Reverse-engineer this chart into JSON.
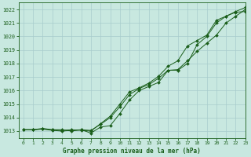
{
  "title": "Graphe pression niveau de la mer (hPa)",
  "bg_color": "#c8e8e0",
  "grid_color": "#a8cccc",
  "line_color": "#1a5e1a",
  "xlim": [
    -0.5,
    23
  ],
  "ylim": [
    1012.5,
    1022.5
  ],
  "yticks": [
    1013,
    1014,
    1015,
    1016,
    1017,
    1018,
    1019,
    1020,
    1021,
    1022
  ],
  "xticks": [
    0,
    1,
    2,
    3,
    4,
    5,
    6,
    7,
    8,
    9,
    10,
    11,
    12,
    13,
    14,
    15,
    16,
    17,
    18,
    19,
    20,
    21,
    22,
    23
  ],
  "series": [
    [
      1013.1,
      1013.1,
      1013.2,
      1013.1,
      1013.1,
      1013.0,
      1013.1,
      1012.85,
      1013.3,
      1013.4,
      1014.3,
      1015.3,
      1016.0,
      1016.3,
      1016.6,
      1017.5,
      1017.5,
      1018.0,
      1019.4,
      1020.0,
      1021.0,
      1021.5,
      1021.8,
      1021.85
    ],
    [
      1013.1,
      1013.1,
      1013.15,
      1013.05,
      1013.0,
      1013.05,
      1013.1,
      1013.05,
      1013.5,
      1014.0,
      1014.8,
      1015.7,
      1016.15,
      1016.45,
      1016.9,
      1017.5,
      1017.55,
      1018.2,
      1018.9,
      1019.5,
      1020.1,
      1021.0,
      1021.5,
      1022.0
    ],
    [
      1013.1,
      1013.1,
      1013.15,
      1013.1,
      1013.05,
      1013.1,
      1013.05,
      1013.0,
      1013.55,
      1014.1,
      1015.0,
      1015.9,
      1016.2,
      1016.55,
      1017.05,
      1017.8,
      1018.2,
      1019.3,
      1019.7,
      1020.1,
      1021.2,
      1021.5,
      1021.85,
      1022.15
    ]
  ]
}
